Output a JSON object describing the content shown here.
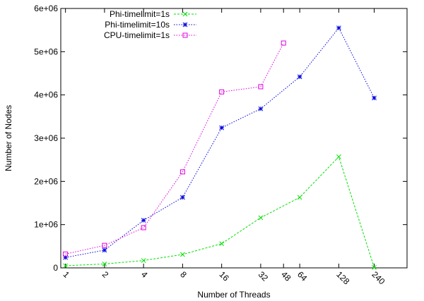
{
  "chart_data": {
    "type": "line",
    "xlabel": "Number of Threads",
    "ylabel": "Number of Nodes",
    "x_scale": "log2",
    "x_ticks": [
      1,
      2,
      4,
      8,
      16,
      32,
      48,
      64,
      128,
      240
    ],
    "x_tick_labels": [
      "1",
      "2",
      "4",
      "8",
      "16",
      "32",
      "48",
      "64",
      "128",
      "240"
    ],
    "ylim": [
      0,
      6000000
    ],
    "y_ticks": [
      0,
      1000000,
      2000000,
      3000000,
      4000000,
      5000000,
      6000000
    ],
    "y_tick_labels": [
      "0",
      "1e+06",
      "2e+06",
      "3e+06",
      "4e+06",
      "5e+06",
      "6e+06"
    ],
    "grid": false,
    "legend_position": "top-left",
    "series": [
      {
        "name": "Phi-timelimit=1s",
        "color": "#00e000",
        "marker": "x",
        "x": [
          1,
          2,
          4,
          8,
          16,
          32,
          64,
          128,
          240
        ],
        "values": [
          50000,
          90000,
          170000,
          310000,
          560000,
          1160000,
          1630000,
          2570000,
          10000
        ]
      },
      {
        "name": "Phi-timelimit=10s",
        "color": "#0000e0",
        "marker": "star",
        "x": [
          1,
          2,
          4,
          8,
          16,
          32,
          64,
          128,
          240
        ],
        "values": [
          240000,
          410000,
          1100000,
          1630000,
          3240000,
          3680000,
          4420000,
          5550000,
          3930000
        ]
      },
      {
        "name": "CPU-timelimit=1s",
        "color": "#e000e0",
        "marker": "square",
        "x": [
          1,
          2,
          4,
          8,
          16,
          32,
          48
        ],
        "values": [
          320000,
          520000,
          930000,
          2220000,
          4070000,
          4190000,
          5200000
        ]
      }
    ]
  }
}
